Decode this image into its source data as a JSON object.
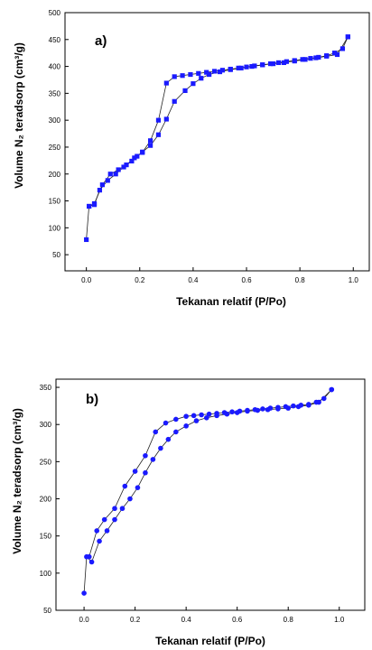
{
  "chart_data": [
    {
      "type": "scatter",
      "panel_label": "a)",
      "xlabel": "Tekanan relatif (P/Po)",
      "ylabel": "Volume N₂ teradsorp (cm³/g)",
      "xlim": [
        -0.08,
        1.06
      ],
      "ylim": [
        20,
        500
      ],
      "xticks": [
        0.0,
        0.2,
        0.4,
        0.6,
        0.8,
        1.0
      ],
      "xtick_labels": [
        "0.0",
        "0.2",
        "0.4",
        "0.6",
        "0.8",
        "1.0"
      ],
      "yticks": [
        50,
        100,
        150,
        200,
        250,
        300,
        350,
        400,
        450,
        500
      ],
      "ytick_labels": [
        "50",
        "100",
        "150",
        "200",
        "250",
        "300",
        "350",
        "400",
        "450",
        "500"
      ],
      "marker": "square",
      "color": "#1a1aff",
      "grid": false,
      "series": [
        {
          "x": [
            0.0,
            0.01,
            0.03,
            0.05,
            0.08,
            0.11,
            0.14,
            0.17,
            0.19,
            0.21,
            0.24,
            0.27,
            0.3,
            0.33,
            0.37,
            0.4,
            0.43,
            0.46,
            0.5,
            0.54,
            0.58,
            0.62,
            0.66,
            0.7,
            0.74,
            0.78,
            0.82,
            0.86,
            0.9,
            0.94,
            0.98
          ],
          "y": [
            78,
            140,
            143,
            170,
            188,
            200,
            213,
            224,
            233,
            241,
            253,
            273,
            302,
            335,
            355,
            368,
            378,
            385,
            390,
            394,
            397,
            400,
            403,
            405,
            407,
            410,
            413,
            416,
            419,
            422,
            455
          ]
        },
        {
          "x": [
            0.98,
            0.96,
            0.93,
            0.9,
            0.87,
            0.84,
            0.81,
            0.78,
            0.75,
            0.72,
            0.69,
            0.66,
            0.63,
            0.6,
            0.57,
            0.54,
            0.51,
            0.48,
            0.45,
            0.42,
            0.39,
            0.36,
            0.33,
            0.3,
            0.27,
            0.24,
            0.21,
            0.18,
            0.15,
            0.12,
            0.09,
            0.06,
            0.03,
            0.01
          ],
          "y": [
            455,
            433,
            425,
            420,
            417,
            415,
            413,
            411,
            409,
            407,
            405,
            403,
            401,
            399,
            397,
            395,
            393,
            391,
            389,
            387,
            385,
            383,
            381,
            369,
            300,
            262,
            240,
            230,
            217,
            208,
            200,
            180,
            145,
            140
          ]
        }
      ]
    },
    {
      "type": "scatter",
      "panel_label": "b)",
      "xlabel": "Tekanan relatif (P/Po)",
      "ylabel": "Volume N₂ teradsorp (cm³/g)",
      "xlim": [
        -0.11,
        1.1
      ],
      "ylim": [
        50,
        361
      ],
      "xticks": [
        0.0,
        0.2,
        0.4,
        0.6,
        0.8,
        1.0
      ],
      "xtick_labels": [
        "0.0",
        "0.2",
        "0.4",
        "0.6",
        "0.8",
        "1.0"
      ],
      "yticks": [
        50,
        100,
        150,
        200,
        250,
        300,
        350
      ],
      "ytick_labels": [
        "50",
        "100",
        "150",
        "200",
        "250",
        "300",
        "350"
      ],
      "marker": "circle",
      "color": "#1a1aff",
      "grid": false,
      "series": [
        {
          "x": [
            0.0,
            0.01,
            0.03,
            0.06,
            0.09,
            0.12,
            0.15,
            0.18,
            0.21,
            0.24,
            0.27,
            0.3,
            0.33,
            0.36,
            0.4,
            0.44,
            0.48,
            0.52,
            0.56,
            0.6,
            0.64,
            0.68,
            0.72,
            0.76,
            0.8,
            0.84,
            0.88,
            0.92,
            0.97
          ],
          "y": [
            73,
            122,
            115,
            143,
            157,
            172,
            187,
            200,
            215,
            235,
            253,
            268,
            280,
            290,
            298,
            305,
            309,
            312,
            314,
            316,
            318,
            319,
            320,
            321,
            322,
            324,
            326,
            330,
            347
          ]
        },
        {
          "x": [
            0.97,
            0.94,
            0.91,
            0.88,
            0.85,
            0.82,
            0.79,
            0.76,
            0.73,
            0.7,
            0.67,
            0.64,
            0.61,
            0.58,
            0.55,
            0.52,
            0.49,
            0.46,
            0.43,
            0.4,
            0.36,
            0.32,
            0.28,
            0.24,
            0.2,
            0.16,
            0.12,
            0.08,
            0.05,
            0.02
          ],
          "y": [
            347,
            335,
            330,
            327,
            326,
            325,
            324,
            323,
            322,
            321,
            320,
            319,
            318,
            317,
            316,
            315,
            314,
            313,
            312,
            311,
            307,
            302,
            290,
            258,
            237,
            217,
            187,
            172,
            157,
            122
          ]
        }
      ]
    }
  ]
}
